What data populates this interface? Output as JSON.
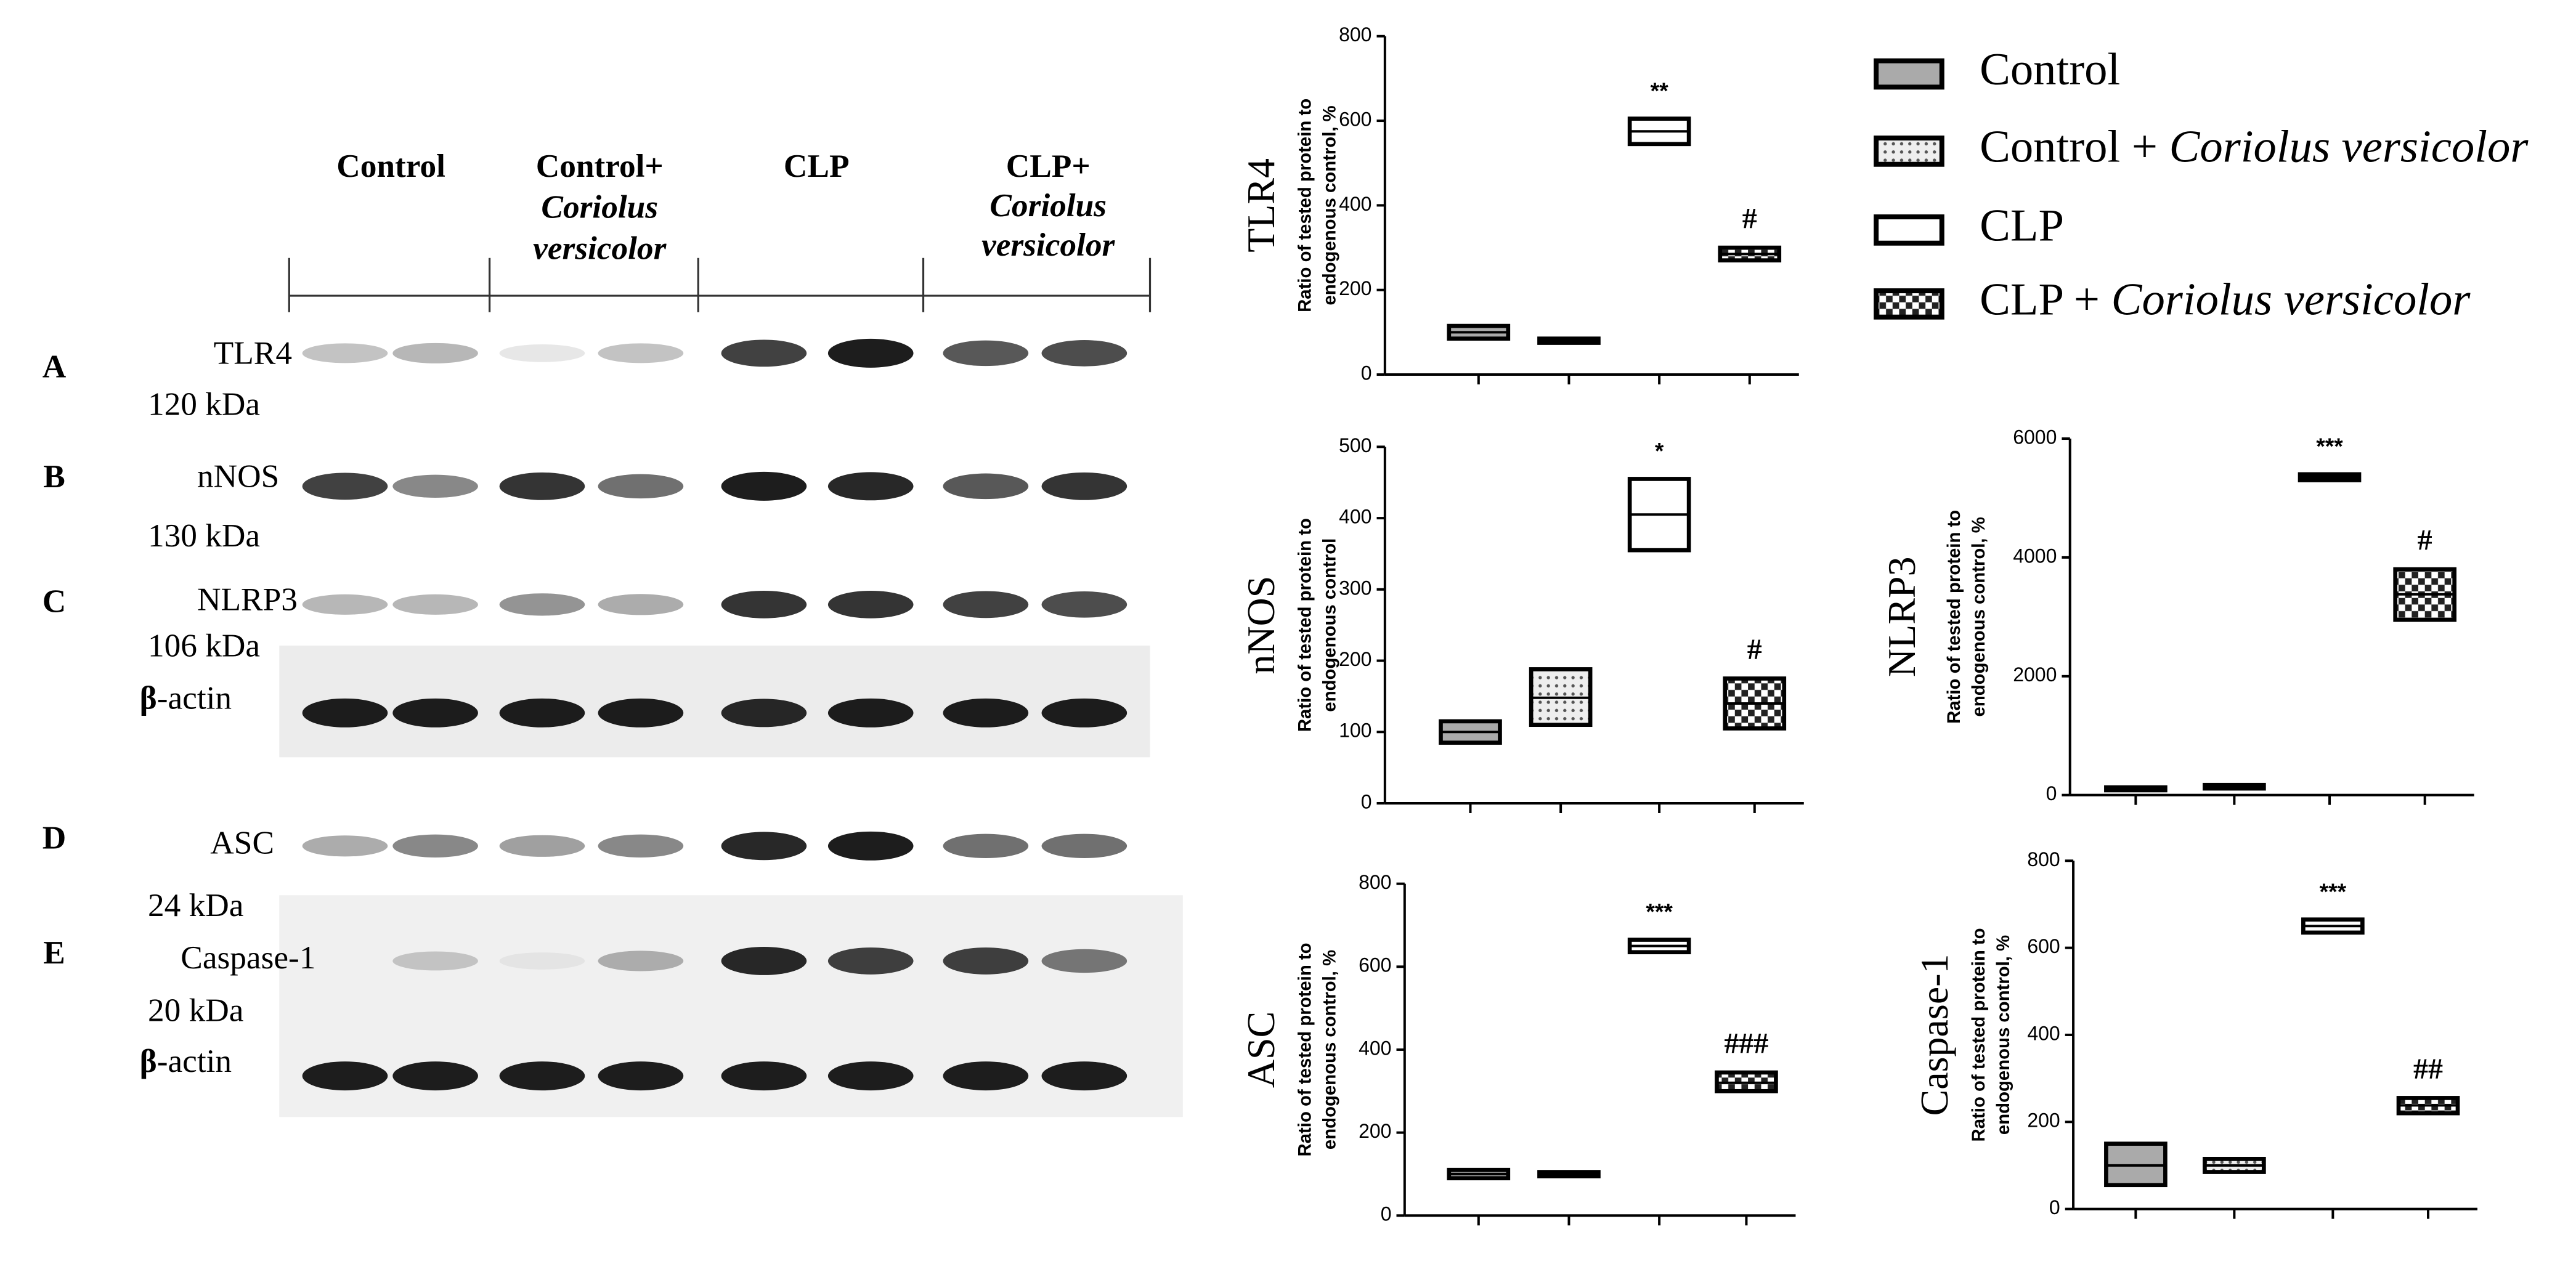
{
  "blot": {
    "columns": [
      [
        "Control"
      ],
      [
        "Control+",
        "Coriolus",
        "versicolor"
      ],
      [
        "CLP"
      ],
      [
        "CLP+",
        "Coriolus",
        "versicolor"
      ]
    ],
    "rows": [
      {
        "letter": "A",
        "protein": "TLR4",
        "size": "120 kDa"
      },
      {
        "letter": "B",
        "protein": "nNOS",
        "size": "130 kDa"
      },
      {
        "letter": "C",
        "protein": "NLRP3",
        "size": "106 kDa"
      },
      {
        "protein": "-actin",
        "greek": "β"
      },
      {
        "letter": "D",
        "protein": "ASC",
        "size": "24 kDa"
      },
      {
        "letter": "E",
        "protein": "Caspase-1",
        "size": "20 kDa"
      },
      {
        "protein": "-actin",
        "greek": "β"
      }
    ]
  },
  "legend": [
    {
      "name": "Control",
      "fill": "#aaaaaa"
    },
    {
      "name": "Control + ",
      "italic": "Coriolus versicolor",
      "fill": "dots"
    },
    {
      "name": "CLP",
      "fill": "#ffffff"
    },
    {
      "name": "CLP + ",
      "italic": "Coriolus versicolor",
      "fill": "checker"
    }
  ],
  "chart_data": [
    {
      "type": "box",
      "title": "TLR4",
      "ylabel": [
        "Ratio of tested protein to",
        "endogenous control, %"
      ],
      "ylim": [
        0,
        800
      ],
      "yticks": [
        0,
        200,
        400,
        600,
        800
      ],
      "lows": [
        85,
        75,
        545,
        270
      ],
      "medians": [
        100,
        80,
        575,
        285
      ],
      "highs": [
        115,
        85,
        605,
        300
      ],
      "annotations": [
        null,
        null,
        "**",
        "#"
      ]
    },
    {
      "type": "box",
      "title": "nNOS",
      "ylabel": [
        "Ratio of tested protein to",
        "endogenous control"
      ],
      "ylim": [
        0,
        500
      ],
      "yticks": [
        0,
        100,
        200,
        300,
        400,
        500
      ],
      "lows": [
        85,
        110,
        355,
        105
      ],
      "medians": [
        100,
        148,
        405,
        140
      ],
      "highs": [
        115,
        188,
        455,
        175
      ],
      "annotations": [
        null,
        null,
        "*",
        "#"
      ]
    },
    {
      "type": "box",
      "title": "NLRP3",
      "ylabel": [
        "Ratio of tested protein to",
        "endogenous control, %"
      ],
      "ylim": [
        0,
        6000
      ],
      "yticks": [
        0,
        2000,
        4000,
        6000
      ],
      "lows": [
        80,
        110,
        5300,
        2950
      ],
      "medians": [
        100,
        140,
        5350,
        3380
      ],
      "highs": [
        130,
        170,
        5400,
        3800
      ],
      "annotations": [
        null,
        null,
        "***",
        "#"
      ]
    },
    {
      "type": "box",
      "title": "ASC",
      "ylabel": [
        "Ratio of tested protein to",
        "endogenous control, %"
      ],
      "ylim": [
        0,
        800
      ],
      "yticks": [
        0,
        200,
        400,
        600,
        800
      ],
      "lows": [
        90,
        95,
        635,
        300
      ],
      "medians": [
        100,
        100,
        650,
        320
      ],
      "highs": [
        110,
        105,
        665,
        345
      ],
      "annotations": [
        null,
        null,
        "***",
        "###"
      ]
    },
    {
      "type": "box",
      "title": "Caspase-1",
      "ylabel": [
        "Ratio of tested protein to",
        "endogenous control, %"
      ],
      "ylim": [
        0,
        800
      ],
      "yticks": [
        0,
        200,
        400,
        600,
        800
      ],
      "lows": [
        55,
        85,
        635,
        220
      ],
      "medians": [
        100,
        100,
        650,
        238
      ],
      "highs": [
        150,
        115,
        665,
        255
      ],
      "annotations": [
        null,
        null,
        "***",
        "##"
      ]
    }
  ]
}
